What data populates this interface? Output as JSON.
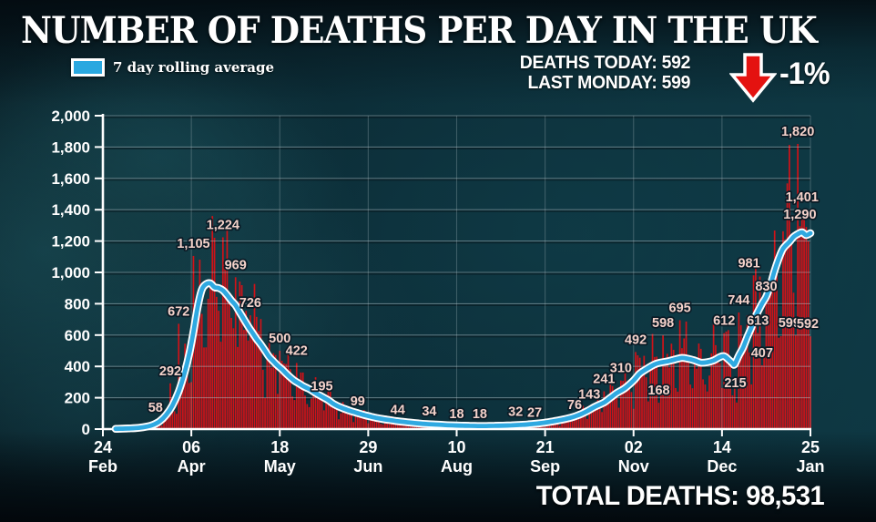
{
  "header": {
    "title": "NUMBER OF DEATHS PER DAY IN THE UK"
  },
  "legend": {
    "label": "7 day rolling average",
    "swatch_color": "#29a8e0"
  },
  "stats": {
    "deaths_today_label": "DEATHS TODAY:",
    "deaths_today_value": "592",
    "last_monday_label": "LAST MONDAY:",
    "last_monday_value": "599",
    "change": "-1%",
    "arrow_icon": "red-down-arrow",
    "arrow_color": "#e41210"
  },
  "footer": {
    "total_label": "TOTAL DEATHS:",
    "total_value": "98,531"
  },
  "chart_data": {
    "type": "bar",
    "subtype": "daily bars with 7-day rolling average line overlay",
    "title": "NUMBER OF DEATHS PER DAY IN THE UK",
    "xlabel": "",
    "ylabel": "",
    "ylim": [
      0,
      2000
    ],
    "ytick_step": 200,
    "grid": true,
    "x_span_days": 336,
    "x_ticks": [
      {
        "day": 0,
        "date": "24",
        "month": "Feb"
      },
      {
        "day": 42,
        "date": "06",
        "month": "Apr"
      },
      {
        "day": 84,
        "date": "18",
        "month": "May"
      },
      {
        "day": 126,
        "date": "29",
        "month": "Jun"
      },
      {
        "day": 168,
        "date": "10",
        "month": "Aug"
      },
      {
        "day": 210,
        "date": "21",
        "month": "Sep"
      },
      {
        "day": 252,
        "date": "02",
        "month": "Nov"
      },
      {
        "day": 294,
        "date": "14",
        "month": "Dec"
      },
      {
        "day": 336,
        "date": "25",
        "month": "Jan"
      }
    ],
    "bar_color": "#d01218",
    "line_color": "#2fa9e1",
    "line_casing_color": "#ffffff",
    "axis_color": "#ffffff",
    "grid_color": "#b7c6cc",
    "label_color": "#f4d2ca",
    "label_outline_color": "#0a1b26",
    "bar_labels": [
      {
        "text": "58",
        "day": 25,
        "value": 58
      },
      {
        "text": "292",
        "day": 32,
        "value": 292
      },
      {
        "text": "672",
        "day": 36,
        "value": 672
      },
      {
        "text": "1,105",
        "day": 43,
        "value": 1105
      },
      {
        "text": "1,224",
        "day": 57,
        "value": 1224
      },
      {
        "text": "969",
        "day": 63,
        "value": 969
      },
      {
        "text": "726",
        "day": 70,
        "value": 726
      },
      {
        "text": "500",
        "day": 84,
        "value": 500
      },
      {
        "text": "422",
        "day": 92,
        "value": 422
      },
      {
        "text": "195",
        "day": 104,
        "value": 195
      },
      {
        "text": "99",
        "day": 121,
        "value": 99
      },
      {
        "text": "44",
        "day": 140,
        "value": 44
      },
      {
        "text": "34",
        "day": 155,
        "value": 34
      },
      {
        "text": "18",
        "day": 168,
        "value": 18
      },
      {
        "text": "18",
        "day": 179,
        "value": 18
      },
      {
        "text": "32",
        "day": 196,
        "value": 32
      },
      {
        "text": "27",
        "day": 205,
        "value": 27
      },
      {
        "text": "76",
        "day": 224,
        "value": 76
      },
      {
        "text": "143",
        "day": 231,
        "value": 143
      },
      {
        "text": "241",
        "day": 238,
        "value": 241
      },
      {
        "text": "310",
        "day": 246,
        "value": 310
      },
      {
        "text": "492",
        "day": 253,
        "value": 492
      },
      {
        "text": "168",
        "day": 264,
        "value": 168
      },
      {
        "text": "598",
        "day": 266,
        "value": 598
      },
      {
        "text": "695",
        "day": 274,
        "value": 695
      },
      {
        "text": "612",
        "day": 295,
        "value": 612
      },
      {
        "text": "215",
        "day": 299,
        "value": 215,
        "dx": 3
      },
      {
        "text": "744",
        "day": 302,
        "value": 744
      },
      {
        "text": "981",
        "day": 309,
        "value": 981,
        "dx": -5
      },
      {
        "text": "613",
        "day": 311,
        "value": 613
      },
      {
        "text": "407",
        "day": 313,
        "value": 407
      },
      {
        "text": "830",
        "day": 315,
        "value": 830
      },
      {
        "text": "599",
        "day": 329,
        "value": 599,
        "dx": -7
      },
      {
        "text": "592",
        "day": 336,
        "value": 592,
        "dx": -3
      },
      {
        "text": "1,820",
        "day": 330,
        "value": 1820
      },
      {
        "text": "1,401",
        "day": 332,
        "value": 1401
      },
      {
        "text": "1,290",
        "day": 334,
        "value": 1290,
        "dx": -7
      }
    ],
    "rolling_avg_points": [
      [
        6,
        2
      ],
      [
        12,
        4
      ],
      [
        17,
        8
      ],
      [
        21,
        16
      ],
      [
        24,
        28
      ],
      [
        27,
        50
      ],
      [
        30,
        90
      ],
      [
        33,
        150
      ],
      [
        36,
        240
      ],
      [
        39,
        370
      ],
      [
        41,
        480
      ],
      [
        43,
        620
      ],
      [
        45,
        780
      ],
      [
        47,
        890
      ],
      [
        49,
        925
      ],
      [
        51,
        930
      ],
      [
        53,
        905
      ],
      [
        55,
        900
      ],
      [
        57,
        885
      ],
      [
        59,
        855
      ],
      [
        61,
        820
      ],
      [
        63,
        790
      ],
      [
        65,
        745
      ],
      [
        67,
        700
      ],
      [
        69,
        655
      ],
      [
        71,
        615
      ],
      [
        73,
        575
      ],
      [
        75,
        540
      ],
      [
        77,
        500
      ],
      [
        79,
        460
      ],
      [
        81,
        432
      ],
      [
        83,
        405
      ],
      [
        85,
        382
      ],
      [
        87,
        355
      ],
      [
        89,
        330
      ],
      [
        91,
        308
      ],
      [
        93,
        292
      ],
      [
        95,
        275
      ],
      [
        97,
        262
      ],
      [
        99,
        248
      ],
      [
        101,
        230
      ],
      [
        103,
        215
      ],
      [
        105,
        200
      ],
      [
        107,
        185
      ],
      [
        109,
        165
      ],
      [
        111,
        150
      ],
      [
        113,
        138
      ],
      [
        115,
        128
      ],
      [
        117,
        118
      ],
      [
        119,
        110
      ],
      [
        121,
        102
      ],
      [
        124,
        90
      ],
      [
        127,
        80
      ],
      [
        130,
        71
      ],
      [
        133,
        64
      ],
      [
        136,
        58
      ],
      [
        139,
        52
      ],
      [
        142,
        47
      ],
      [
        146,
        41
      ],
      [
        150,
        36
      ],
      [
        154,
        32
      ],
      [
        158,
        29
      ],
      [
        162,
        26
      ],
      [
        166,
        24
      ],
      [
        170,
        22
      ],
      [
        174,
        21
      ],
      [
        178,
        20
      ],
      [
        182,
        20
      ],
      [
        186,
        21
      ],
      [
        190,
        22
      ],
      [
        194,
        24
      ],
      [
        198,
        27
      ],
      [
        202,
        30
      ],
      [
        206,
        35
      ],
      [
        210,
        41
      ],
      [
        214,
        50
      ],
      [
        218,
        60
      ],
      [
        222,
        72
      ],
      [
        226,
        90
      ],
      [
        230,
        115
      ],
      [
        234,
        145
      ],
      [
        238,
        170
      ],
      [
        241,
        200
      ],
      [
        244,
        230
      ],
      [
        248,
        262
      ],
      [
        252,
        310
      ],
      [
        255,
        355
      ],
      [
        258,
        382
      ],
      [
        262,
        413
      ],
      [
        265,
        425
      ],
      [
        268,
        432
      ],
      [
        271,
        442
      ],
      [
        275,
        454
      ],
      [
        278,
        448
      ],
      [
        281,
        438
      ],
      [
        284,
        424
      ],
      [
        287,
        427
      ],
      [
        290,
        438
      ],
      [
        293,
        460
      ],
      [
        295,
        465
      ],
      [
        297,
        445
      ],
      [
        299,
        420
      ],
      [
        300,
        413
      ],
      [
        302,
        470
      ],
      [
        304,
        520
      ],
      [
        306,
        587
      ],
      [
        308,
        650
      ],
      [
        310,
        721
      ],
      [
        313,
        800
      ],
      [
        315,
        845
      ],
      [
        317,
        920
      ],
      [
        319,
        1012
      ],
      [
        321,
        1090
      ],
      [
        323,
        1151
      ],
      [
        326,
        1195
      ],
      [
        328,
        1227
      ],
      [
        330,
        1245
      ],
      [
        332,
        1256
      ],
      [
        334,
        1238
      ],
      [
        336,
        1250
      ]
    ],
    "daily_overrides": {
      "25": 58,
      "32": 292,
      "36": 672,
      "43": 1105,
      "57": 1224,
      "63": 969,
      "70": 726,
      "84": 500,
      "92": 422,
      "104": 195,
      "121": 99,
      "140": 44,
      "155": 34,
      "168": 18,
      "179": 18,
      "196": 32,
      "205": 27,
      "224": 76,
      "231": 143,
      "238": 241,
      "246": 310,
      "253": 492,
      "264": 168,
      "266": 598,
      "274": 695,
      "295": 612,
      "299": 215,
      "302": 744,
      "309": 981,
      "311": 613,
      "313": 407,
      "315": 830,
      "329": 599,
      "330": 1820,
      "331": 1295,
      "332": 1401,
      "333": 1348,
      "334": 1290,
      "335": 1200,
      "336": 592
    },
    "weekday_factors": [
      0.5,
      0.95,
      1.2,
      1.25,
      1.18,
      1.05,
      0.72
    ],
    "legend_position": "top-left"
  }
}
